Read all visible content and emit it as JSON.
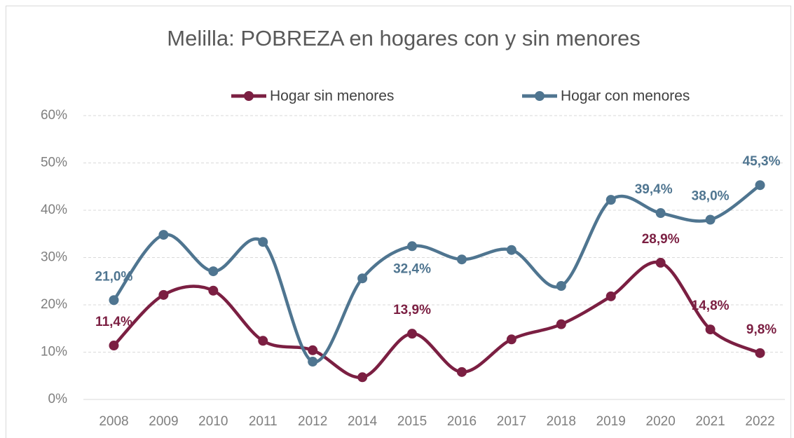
{
  "chart_data": {
    "type": "line",
    "title": "Melilla: POBREZA en hogares con y sin menores",
    "categories": [
      "2008",
      "2009",
      "2010",
      "2011",
      "2012",
      "2014",
      "2015",
      "2016",
      "2017",
      "2018",
      "2019",
      "2020",
      "2021",
      "2022"
    ],
    "series": [
      {
        "name": "Hogar sin menores",
        "color": "#7b1f42",
        "values": [
          11.4,
          22.1,
          23.0,
          12.4,
          10.4,
          4.7,
          13.9,
          5.8,
          12.7,
          15.9,
          21.8,
          28.9,
          14.8,
          9.8
        ],
        "value_labels": [
          "11,4%",
          null,
          null,
          null,
          null,
          null,
          "13,9%",
          null,
          null,
          null,
          null,
          "28,9%",
          "14,8%",
          "9,8%"
        ]
      },
      {
        "name": "Hogar con menores",
        "color": "#4f7590",
        "values": [
          21.0,
          34.8,
          27.1,
          33.3,
          8.0,
          25.6,
          32.4,
          29.6,
          31.6,
          24.0,
          42.2,
          39.4,
          38.0,
          45.3
        ],
        "value_labels": [
          "21,0%",
          null,
          null,
          null,
          null,
          null,
          "32,4%",
          null,
          null,
          null,
          null,
          "39,4%",
          "38,0%",
          "45,3%"
        ]
      }
    ],
    "ylim": [
      0,
      60
    ],
    "yticks": [
      {
        "value": 0,
        "label": "0%"
      },
      {
        "value": 10,
        "label": "10%"
      },
      {
        "value": 20,
        "label": "20%"
      },
      {
        "value": 30,
        "label": "30%"
      },
      {
        "value": 40,
        "label": "40%"
      },
      {
        "value": 50,
        "label": "50%"
      },
      {
        "value": 60,
        "label": "60%"
      }
    ],
    "grid": true,
    "smooth": true,
    "legend": "top"
  }
}
